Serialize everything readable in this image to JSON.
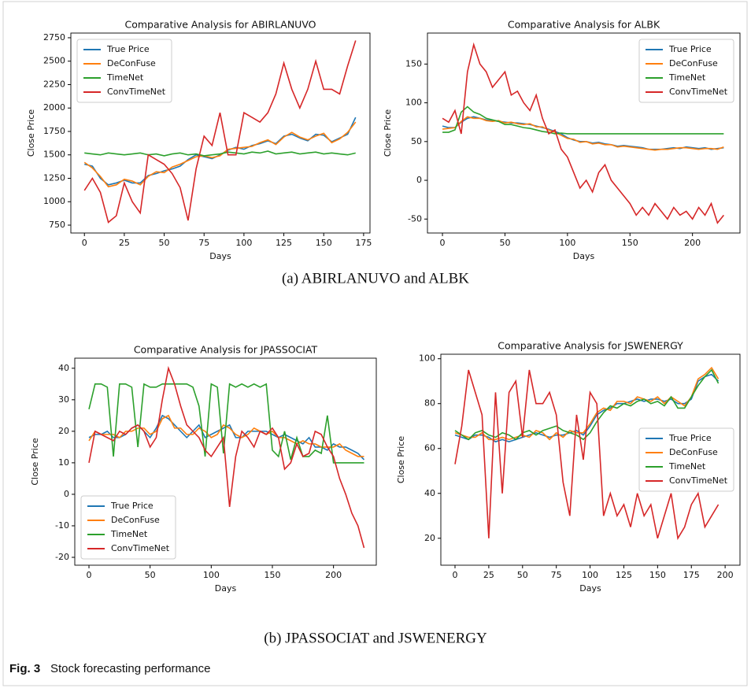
{
  "chart_data": [
    {
      "type": "line",
      "title": "Comparative Analysis for ABIRLANUVO",
      "x_label": "Days",
      "y_label": "Close Price",
      "x": [
        0,
        5,
        10,
        15,
        20,
        25,
        30,
        35,
        40,
        45,
        50,
        55,
        60,
        65,
        70,
        75,
        80,
        85,
        90,
        95,
        100,
        105,
        110,
        115,
        120,
        125,
        130,
        135,
        140,
        145,
        150,
        155,
        160,
        165,
        170
      ],
      "xlim": [
        -8.5,
        179
      ],
      "ylim": [
        666,
        2800
      ],
      "xticks": [
        0,
        25,
        50,
        75,
        100,
        125,
        150,
        175
      ],
      "yticks": [
        750,
        1000,
        1250,
        1500,
        1750,
        2000,
        2250,
        2500,
        2750
      ],
      "legend": "upper left",
      "series": [
        {
          "name": "True Price",
          "color": "#1f77b4",
          "values": [
            1400,
            1380,
            1250,
            1180,
            1200,
            1230,
            1200,
            1200,
            1280,
            1300,
            1330,
            1350,
            1380,
            1450,
            1500,
            1480,
            1460,
            1500,
            1550,
            1580,
            1560,
            1600,
            1620,
            1650,
            1620,
            1700,
            1720,
            1680,
            1650,
            1720,
            1710,
            1640,
            1680,
            1720,
            1900
          ]
        },
        {
          "name": "DeConFuse",
          "color": "#ff7f0e",
          "values": [
            1420,
            1360,
            1270,
            1160,
            1180,
            1240,
            1220,
            1180,
            1270,
            1320,
            1310,
            1370,
            1400,
            1440,
            1480,
            1490,
            1470,
            1490,
            1560,
            1570,
            1580,
            1590,
            1630,
            1660,
            1610,
            1690,
            1740,
            1690,
            1660,
            1700,
            1730,
            1630,
            1670,
            1740,
            1850
          ]
        },
        {
          "name": "TimeNet",
          "color": "#2ca02c",
          "values": [
            1520,
            1510,
            1500,
            1520,
            1510,
            1500,
            1510,
            1520,
            1500,
            1510,
            1490,
            1510,
            1520,
            1500,
            1510,
            1490,
            1500,
            1510,
            1530,
            1520,
            1510,
            1530,
            1520,
            1540,
            1510,
            1520,
            1530,
            1510,
            1520,
            1530,
            1510,
            1520,
            1510,
            1500,
            1520
          ]
        },
        {
          "name": "ConvTimeNet",
          "color": "#d62728",
          "values": [
            1120,
            1250,
            1100,
            780,
            850,
            1200,
            1000,
            880,
            1500,
            1450,
            1400,
            1300,
            1150,
            800,
            1350,
            1700,
            1600,
            1950,
            1500,
            1500,
            1950,
            1900,
            1850,
            1950,
            2150,
            2480,
            2200,
            2000,
            2200,
            2500,
            2200,
            2200,
            2150,
            2450,
            2720
          ]
        }
      ]
    },
    {
      "type": "line",
      "title": "Comparative Analysis for ALBK",
      "x_label": "Days",
      "y_label": "Close Price",
      "x": [
        0,
        5,
        10,
        15,
        20,
        25,
        30,
        35,
        40,
        45,
        50,
        55,
        60,
        65,
        70,
        75,
        80,
        85,
        90,
        95,
        100,
        105,
        110,
        115,
        120,
        125,
        130,
        135,
        140,
        145,
        150,
        155,
        160,
        165,
        170,
        175,
        180,
        185,
        190,
        195,
        200,
        205,
        210,
        215,
        220,
        225
      ],
      "xlim": [
        -12,
        238
      ],
      "ylim": [
        -68,
        190
      ],
      "xticks": [
        0,
        50,
        100,
        150,
        200
      ],
      "yticks": [
        -50,
        0,
        50,
        100,
        150
      ],
      "legend": "upper right",
      "series": [
        {
          "name": "True Price",
          "color": "#1f77b4",
          "values": [
            70,
            68,
            68,
            75,
            80,
            82,
            80,
            78,
            77,
            76,
            75,
            74,
            74,
            73,
            72,
            70,
            68,
            66,
            63,
            60,
            55,
            52,
            50,
            50,
            48,
            49,
            47,
            46,
            44,
            45,
            44,
            43,
            42,
            40,
            40,
            40,
            41,
            42,
            41,
            43,
            42,
            41,
            42,
            40,
            41,
            42
          ]
        },
        {
          "name": "DeConFuse",
          "color": "#ff7f0e",
          "values": [
            66,
            67,
            68,
            76,
            82,
            80,
            80,
            77,
            76,
            77,
            74,
            75,
            73,
            72,
            73,
            69,
            69,
            65,
            62,
            58,
            54,
            53,
            49,
            50,
            47,
            48,
            46,
            46,
            43,
            44,
            43,
            42,
            41,
            40,
            39,
            40,
            40,
            41,
            42,
            42,
            41,
            40,
            41,
            41,
            40,
            43
          ]
        },
        {
          "name": "TimeNet",
          "color": "#2ca02c",
          "values": [
            62,
            62,
            65,
            88,
            95,
            88,
            85,
            80,
            78,
            76,
            72,
            72,
            70,
            68,
            67,
            65,
            63,
            62,
            60,
            61,
            60,
            60,
            60,
            60,
            60,
            60,
            60,
            60,
            60,
            60,
            60,
            60,
            60,
            60,
            60,
            60,
            60,
            60,
            60,
            60,
            60,
            60,
            60,
            60,
            60,
            60
          ]
        },
        {
          "name": "ConvTimeNet",
          "color": "#d62728",
          "values": [
            80,
            75,
            90,
            60,
            140,
            175,
            150,
            140,
            120,
            130,
            140,
            110,
            115,
            100,
            90,
            110,
            80,
            60,
            65,
            40,
            30,
            10,
            -10,
            0,
            -15,
            10,
            20,
            0,
            -10,
            -20,
            -30,
            -45,
            -35,
            -45,
            -30,
            -40,
            -50,
            -35,
            -45,
            -40,
            -50,
            -35,
            -45,
            -30,
            -55,
            -45
          ]
        }
      ]
    },
    {
      "type": "line",
      "title": "Comparative Analysis for JPASSOCIAT",
      "x_label": "Days",
      "y_label": "Close Price",
      "x": [
        0,
        5,
        10,
        15,
        20,
        25,
        30,
        35,
        40,
        45,
        50,
        55,
        60,
        65,
        70,
        75,
        80,
        85,
        90,
        95,
        100,
        105,
        110,
        115,
        120,
        125,
        130,
        135,
        140,
        145,
        150,
        155,
        160,
        165,
        170,
        175,
        180,
        185,
        190,
        195,
        200,
        205,
        210,
        215,
        220,
        225
      ],
      "xlim": [
        -11.6,
        235
      ],
      "ylim": [
        -22.5,
        43.2
      ],
      "xticks": [
        0,
        50,
        100,
        150,
        200
      ],
      "yticks": [
        -20,
        -10,
        0,
        10,
        20,
        30,
        40
      ],
      "legend": "lower left",
      "series": [
        {
          "name": "True Price",
          "color": "#1f77b4",
          "values": [
            18,
            19,
            19,
            20,
            18,
            18,
            19,
            21,
            22,
            20,
            18,
            21,
            25,
            24,
            22,
            20,
            18,
            20,
            22,
            18,
            19,
            20,
            21,
            22,
            18,
            18,
            20,
            20,
            20,
            20,
            19,
            18,
            19,
            18,
            17,
            16,
            18,
            15,
            15,
            14,
            16,
            15,
            15,
            14,
            13,
            11
          ]
        },
        {
          "name": "DeConFuse",
          "color": "#ff7f0e",
          "values": [
            17,
            20,
            19,
            19,
            19,
            18,
            20,
            20,
            21,
            21,
            19,
            20,
            24,
            25,
            21,
            21,
            19,
            19,
            21,
            20,
            18,
            19,
            22,
            21,
            19,
            18,
            19,
            21,
            20,
            19,
            20,
            18,
            18,
            17,
            16,
            17,
            16,
            16,
            15,
            15,
            15,
            16,
            14,
            13,
            12,
            12
          ]
        },
        {
          "name": "TimeNet",
          "color": "#2ca02c",
          "values": [
            27,
            35,
            35,
            34,
            12,
            35,
            35,
            34,
            15,
            35,
            34,
            34,
            35,
            35,
            35,
            35,
            35,
            34,
            28,
            12,
            35,
            34,
            13,
            35,
            34,
            35,
            34,
            35,
            34,
            35,
            14,
            12,
            20,
            11,
            18,
            12,
            12,
            14,
            13,
            25,
            10,
            10,
            10,
            10,
            10,
            10
          ]
        },
        {
          "name": "ConvTimeNet",
          "color": "#d62728",
          "values": [
            10,
            20,
            19,
            18,
            17,
            20,
            19,
            21,
            22,
            20,
            15,
            18,
            30,
            40,
            35,
            28,
            22,
            20,
            18,
            14,
            12,
            15,
            18,
            -4,
            12,
            20,
            18,
            15,
            20,
            19,
            21,
            18,
            8,
            10,
            16,
            12,
            13,
            20,
            19,
            15,
            12,
            5,
            0,
            -6,
            -10,
            -17
          ]
        }
      ]
    },
    {
      "type": "line",
      "title": "Comparative Analysis for JSWENERGY",
      "x_label": "Days",
      "y_label": "Close Price",
      "x": [
        0,
        5,
        10,
        15,
        20,
        25,
        30,
        35,
        40,
        45,
        50,
        55,
        60,
        65,
        70,
        75,
        80,
        85,
        90,
        95,
        100,
        105,
        110,
        115,
        120,
        125,
        130,
        135,
        140,
        145,
        150,
        155,
        160,
        165,
        170,
        175,
        180,
        185,
        190,
        195
      ],
      "xlim": [
        -10.5,
        211
      ],
      "ylim": [
        8,
        102
      ],
      "xticks": [
        0,
        25,
        50,
        75,
        100,
        125,
        150,
        175,
        200
      ],
      "yticks": [
        20,
        40,
        60,
        80,
        100
      ],
      "legend": "center right",
      "series": [
        {
          "name": "True Price",
          "color": "#1f77b4",
          "values": [
            66,
            65,
            64,
            66,
            66,
            65,
            63,
            64,
            63,
            64,
            65,
            66,
            67,
            66,
            65,
            66,
            66,
            67,
            68,
            66,
            70,
            75,
            77,
            78,
            80,
            80,
            81,
            82,
            81,
            82,
            82,
            81,
            82,
            80,
            80,
            82,
            90,
            92,
            93,
            90
          ]
        },
        {
          "name": "DeConFuse",
          "color": "#ff7f0e",
          "values": [
            67,
            66,
            65,
            65,
            67,
            64,
            64,
            65,
            64,
            65,
            66,
            65,
            68,
            67,
            64,
            67,
            65,
            68,
            67,
            67,
            71,
            76,
            78,
            77,
            81,
            81,
            80,
            83,
            82,
            81,
            83,
            80,
            83,
            81,
            79,
            83,
            91,
            93,
            96,
            91
          ]
        },
        {
          "name": "TimeNet",
          "color": "#2ca02c",
          "values": [
            68,
            66,
            64,
            67,
            68,
            66,
            65,
            67,
            66,
            64,
            67,
            68,
            66,
            68,
            69,
            70,
            68,
            67,
            66,
            64,
            67,
            72,
            76,
            79,
            78,
            80,
            79,
            81,
            82,
            80,
            81,
            79,
            83,
            78,
            78,
            83,
            88,
            92,
            95,
            89
          ]
        },
        {
          "name": "ConvTimeNet",
          "color": "#d62728",
          "values": [
            53,
            70,
            95,
            85,
            75,
            20,
            85,
            40,
            85,
            90,
            65,
            95,
            80,
            80,
            85,
            75,
            45,
            30,
            75,
            55,
            85,
            80,
            30,
            40,
            30,
            35,
            25,
            40,
            30,
            35,
            20,
            30,
            40,
            20,
            25,
            35,
            40,
            25,
            30,
            35
          ]
        }
      ]
    }
  ],
  "subcaptions": [
    "(a) ABIRLANUVO and ALBK",
    "(b) JPASSOCIAT and JSWENERGY"
  ],
  "figure": {
    "label": "Fig. 3",
    "caption": "Stock forecasting performance"
  }
}
